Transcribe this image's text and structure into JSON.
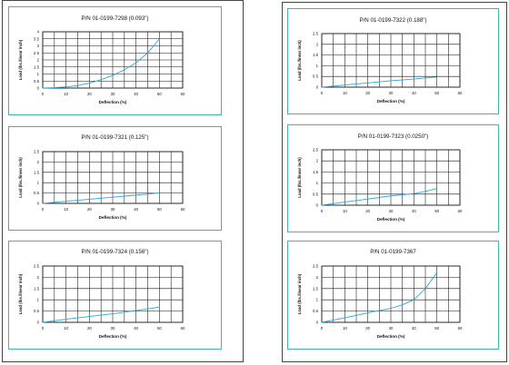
{
  "curve_color": "#2aa7d6",
  "panel_border_color": "#3cb6b0",
  "chart_data": [
    {
      "id": "p7298",
      "type": "line",
      "title": "P/N 01-0199-7298 (0.093\")",
      "xlabel": "Deflection (%)",
      "ylabel": "Load (lbs./linear inch)",
      "xlim": [
        0,
        60
      ],
      "ylim": [
        0,
        4
      ],
      "xticks": [
        0,
        10,
        20,
        30,
        40,
        50,
        60
      ],
      "yticks": [
        0,
        0.5,
        1,
        1.5,
        2,
        2.5,
        3,
        3.5,
        4
      ],
      "grid": true,
      "series": [
        {
          "x": [
            0,
            5,
            10,
            15,
            20,
            25,
            30,
            35,
            40,
            45,
            50
          ],
          "y": [
            0,
            0.03,
            0.08,
            0.18,
            0.35,
            0.6,
            0.9,
            1.3,
            1.8,
            2.5,
            3.5
          ]
        }
      ]
    },
    {
      "id": "p7321",
      "type": "line",
      "title": "P/N 01-0199-7321 (0.125\")",
      "xlabel": "Deflection (%)",
      "ylabel": "Load (lbs./linear inch)",
      "xlim": [
        0,
        60
      ],
      "ylim": [
        0,
        2.5
      ],
      "xticks": [
        0,
        10,
        20,
        30,
        40,
        50,
        60
      ],
      "yticks": [
        0,
        0.5,
        1,
        1.5,
        2,
        2.5
      ],
      "grid": true,
      "series": [
        {
          "x": [
            0,
            10,
            20,
            30,
            40,
            50
          ],
          "y": [
            0,
            0.1,
            0.2,
            0.3,
            0.4,
            0.5
          ]
        }
      ]
    },
    {
      "id": "p7324",
      "type": "line",
      "title": "P/N 01-0199-7324 (0.156\")",
      "xlabel": "Deflection (%)",
      "ylabel": "Load (lbs./linear inch)",
      "xlim": [
        0,
        60
      ],
      "ylim": [
        0,
        2.5
      ],
      "xticks": [
        0,
        10,
        20,
        30,
        40,
        50,
        60
      ],
      "yticks": [
        0,
        0.5,
        1,
        1.5,
        2,
        2.5
      ],
      "grid": true,
      "series": [
        {
          "x": [
            0,
            10,
            20,
            30,
            40,
            50
          ],
          "y": [
            0,
            0.14,
            0.26,
            0.38,
            0.52,
            0.68
          ]
        }
      ]
    },
    {
      "id": "p7322",
      "type": "line",
      "title": "P/N 01-0199-7322 (0.188\")",
      "xlabel": "Deflection (%)",
      "ylabel": "Load (lbs./linear inch)",
      "xlim": [
        0,
        60
      ],
      "ylim": [
        0,
        2.5
      ],
      "xticks": [
        0,
        10,
        20,
        30,
        40,
        50,
        60
      ],
      "yticks": [
        0,
        0.5,
        1,
        1.5,
        2,
        2.5
      ],
      "grid": true,
      "series": [
        {
          "x": [
            0,
            10,
            20,
            30,
            40,
            50
          ],
          "y": [
            0,
            0.1,
            0.2,
            0.3,
            0.38,
            0.48
          ]
        }
      ]
    },
    {
      "id": "p7323",
      "type": "line",
      "title": "P/N 01-0199-7323 (0.0250\")",
      "xlabel": "Deflection (%)",
      "ylabel": "Load (lbs./linear inch)",
      "xlim": [
        0,
        60
      ],
      "ylim": [
        0,
        2.5
      ],
      "xticks": [
        0,
        10,
        20,
        30,
        40,
        50,
        60
      ],
      "yticks": [
        0,
        0.5,
        1,
        1.5,
        2,
        2.5
      ],
      "grid": true,
      "series": [
        {
          "x": [
            0,
            10,
            20,
            30,
            40,
            45,
            50
          ],
          "y": [
            0,
            0.14,
            0.28,
            0.42,
            0.52,
            0.62,
            0.75
          ]
        }
      ]
    },
    {
      "id": "p7367",
      "type": "line",
      "title": "P/N 01-0199-7367",
      "xlabel": "Deflection (%)",
      "ylabel": "Load (lbs./linear inch)",
      "xlim": [
        0,
        60
      ],
      "ylim": [
        0,
        2.5
      ],
      "xticks": [
        0,
        10,
        20,
        30,
        40,
        50,
        60
      ],
      "yticks": [
        0,
        0.5,
        1,
        1.5,
        2,
        2.5
      ],
      "grid": true,
      "series": [
        {
          "x": [
            0,
            10,
            20,
            30,
            35,
            40,
            45,
            50
          ],
          "y": [
            0,
            0.2,
            0.42,
            0.62,
            0.78,
            1.0,
            1.5,
            2.2
          ]
        }
      ]
    }
  ]
}
